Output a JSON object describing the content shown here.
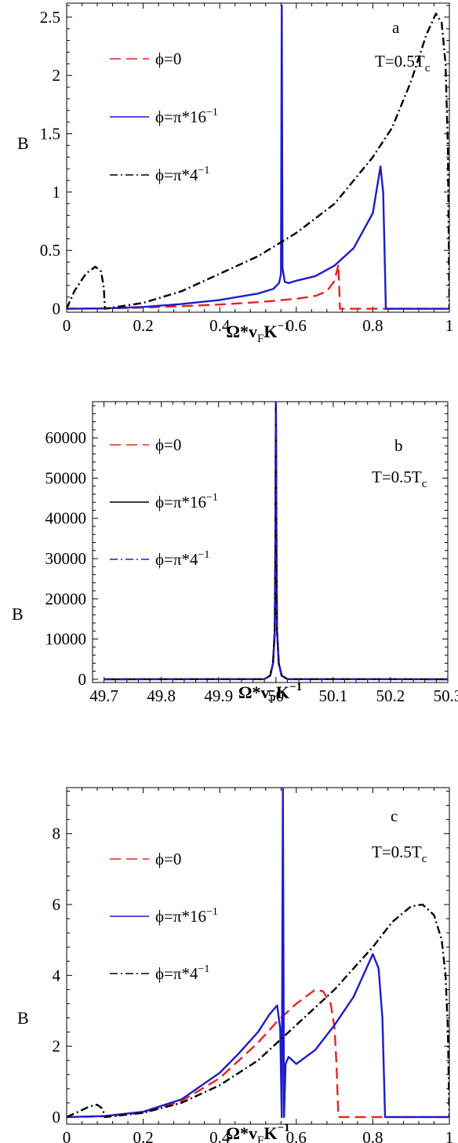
{
  "chart_data": [
    {
      "type": "line",
      "panel_label": "a",
      "annotation": "T=0.5T",
      "annotation_sub": "c",
      "xlabel": "Ω*v",
      "xlabel_sub": "F",
      "xlabel_tail": "K",
      "xlabel_sup": "−1",
      "ylabel": "B",
      "xlim": [
        0,
        1
      ],
      "ylim": [
        -0.03,
        2.62
      ],
      "x_ticks": [
        0,
        0.2,
        0.4,
        0.6,
        0.8,
        1
      ],
      "x_tick_labels": [
        "0",
        "0.2",
        "0.4",
        "0.6",
        "0.8",
        "1"
      ],
      "y_ticks": [
        0,
        0.5,
        1,
        1.5,
        2,
        2.5
      ],
      "y_tick_labels": [
        "0",
        "0.5",
        "1",
        "1.5",
        "2",
        "2.5"
      ],
      "legend_position": "upper-left",
      "series": [
        {
          "name": "ϕ=0",
          "color": "#e8241c",
          "dash": "dashed",
          "points": [
            [
              0,
              0
            ],
            [
              0.1,
              0.002
            ],
            [
              0.2,
              0.01
            ],
            [
              0.3,
              0.022
            ],
            [
              0.4,
              0.036
            ],
            [
              0.5,
              0.056
            ],
            [
              0.6,
              0.085
            ],
            [
              0.65,
              0.11
            ],
            [
              0.68,
              0.15
            ],
            [
              0.7,
              0.24
            ],
            [
              0.71,
              0.38
            ],
            [
              0.712,
              0.2
            ],
            [
              0.714,
              0
            ],
            [
              1,
              0
            ]
          ]
        },
        {
          "name": "ϕ=π*16",
          "name_sup": "−1",
          "color": "#1c1ccc",
          "dash": "solid",
          "points": [
            [
              0,
              0
            ],
            [
              0.1,
              0.003
            ],
            [
              0.2,
              0.015
            ],
            [
              0.3,
              0.04
            ],
            [
              0.4,
              0.075
            ],
            [
              0.5,
              0.13
            ],
            [
              0.54,
              0.17
            ],
            [
              0.555,
              0.22
            ],
            [
              0.56,
              0.3
            ],
            [
              0.562,
              2.6
            ],
            [
              0.564,
              0.35
            ],
            [
              0.57,
              0.23
            ],
            [
              0.58,
              0.22
            ],
            [
              0.6,
              0.24
            ],
            [
              0.65,
              0.28
            ],
            [
              0.7,
              0.37
            ],
            [
              0.75,
              0.52
            ],
            [
              0.8,
              0.82
            ],
            [
              0.82,
              1.22
            ],
            [
              0.827,
              1.0
            ],
            [
              0.832,
              0.3
            ],
            [
              0.834,
              0
            ],
            [
              1,
              0
            ]
          ]
        },
        {
          "name": "ϕ=π*4",
          "name_sup": "−1",
          "color": "#000000",
          "dash": "dashdot",
          "points": [
            [
              0,
              0
            ],
            [
              0.02,
              0.15
            ],
            [
              0.05,
              0.3
            ],
            [
              0.075,
              0.36
            ],
            [
              0.09,
              0.32
            ],
            [
              0.097,
              0.18
            ],
            [
              0.1,
              0
            ],
            [
              0.2,
              0.05
            ],
            [
              0.3,
              0.15
            ],
            [
              0.4,
              0.3
            ],
            [
              0.5,
              0.45
            ],
            [
              0.6,
              0.65
            ],
            [
              0.7,
              0.9
            ],
            [
              0.8,
              1.3
            ],
            [
              0.85,
              1.55
            ],
            [
              0.9,
              1.95
            ],
            [
              0.94,
              2.35
            ],
            [
              0.965,
              2.53
            ],
            [
              0.98,
              2.45
            ],
            [
              0.99,
              2.1
            ],
            [
              0.996,
              1.4
            ],
            [
              1,
              0
            ]
          ]
        }
      ]
    },
    {
      "type": "line",
      "panel_label": "b",
      "annotation": "T=0.5T",
      "annotation_sub": "c",
      "xlabel": "Ω*v",
      "xlabel_sub": "F",
      "xlabel_tail": "K",
      "xlabel_sup": "−1",
      "ylabel": "B",
      "xlim": [
        49.68,
        50.3
      ],
      "ylim": [
        -800,
        69000
      ],
      "x_ticks": [
        49.7,
        49.8,
        49.9,
        50,
        50.1,
        50.2,
        50.3
      ],
      "x_tick_labels": [
        "49.7",
        "49.8",
        "49.9",
        "50",
        "50.1",
        "50.2",
        "50.3"
      ],
      "y_ticks": [
        0,
        10000,
        20000,
        30000,
        40000,
        50000,
        60000
      ],
      "y_tick_labels": [
        "0",
        "10000",
        "20000",
        "30000",
        "40000",
        "50000",
        "60000"
      ],
      "legend_position": "upper-left",
      "series": [
        {
          "name": "ϕ=0",
          "color": "#e8241c",
          "dash": "dashed",
          "points": [
            [
              49.7,
              0
            ],
            [
              49.98,
              50
            ],
            [
              49.99,
              900
            ],
            [
              49.995,
              4000
            ],
            [
              49.998,
              12000
            ],
            [
              49.999,
              30000
            ],
            [
              50,
              69000
            ],
            [
              50.001,
              30000
            ],
            [
              50.002,
              12000
            ],
            [
              50.005,
              4000
            ],
            [
              50.01,
              900
            ],
            [
              50.02,
              50
            ],
            [
              50.3,
              0
            ]
          ]
        },
        {
          "name": "ϕ=π*16",
          "name_sup": "−1",
          "color": "#000000",
          "dash": "solid",
          "points": [
            [
              49.7,
              0
            ],
            [
              49.98,
              50
            ],
            [
              49.99,
              900
            ],
            [
              49.995,
              4000
            ],
            [
              49.998,
              12000
            ],
            [
              49.999,
              30000
            ],
            [
              50,
              69000
            ],
            [
              50.001,
              30000
            ],
            [
              50.002,
              12000
            ],
            [
              50.005,
              4000
            ],
            [
              50.01,
              900
            ],
            [
              50.02,
              50
            ],
            [
              50.3,
              0
            ]
          ]
        },
        {
          "name": "ϕ=π*4",
          "name_sup": "−1",
          "color": "#1c1ccc",
          "dash": "dashdot",
          "points": [
            [
              49.7,
              0
            ],
            [
              49.98,
              50
            ],
            [
              49.99,
              900
            ],
            [
              49.995,
              4000
            ],
            [
              49.998,
              12000
            ],
            [
              49.999,
              30000
            ],
            [
              50,
              69000
            ],
            [
              50.001,
              30000
            ],
            [
              50.002,
              12000
            ],
            [
              50.005,
              4000
            ],
            [
              50.01,
              900
            ],
            [
              50.02,
              50
            ],
            [
              50.3,
              0
            ]
          ]
        }
      ]
    },
    {
      "type": "line",
      "panel_label": "c",
      "annotation": "T=0.5T",
      "annotation_sub": "c",
      "xlabel": "Ω*v",
      "xlabel_sub": "F",
      "xlabel_tail": "K",
      "xlabel_sup": "−1",
      "ylabel": "B",
      "xlim": [
        0,
        1
      ],
      "ylim": [
        -0.2,
        9.3
      ],
      "x_ticks": [
        0,
        0.2,
        0.4,
        0.6,
        0.8,
        1
      ],
      "x_tick_labels": [
        "0",
        "0.2",
        "0.4",
        "0.6",
        "0.8",
        "1"
      ],
      "y_ticks": [
        0,
        2,
        4,
        6,
        8
      ],
      "y_tick_labels": [
        "0",
        "2",
        "4",
        "6",
        "8"
      ],
      "legend_position": "upper-left",
      "series": [
        {
          "name": "ϕ=0",
          "color": "#e8241c",
          "dash": "dashed",
          "points": [
            [
              0,
              0
            ],
            [
              0.1,
              0.02
            ],
            [
              0.2,
              0.12
            ],
            [
              0.3,
              0.45
            ],
            [
              0.4,
              1.1
            ],
            [
              0.5,
              2.1
            ],
            [
              0.55,
              2.7
            ],
            [
              0.6,
              3.2
            ],
            [
              0.65,
              3.6
            ],
            [
              0.67,
              3.55
            ],
            [
              0.69,
              3.2
            ],
            [
              0.7,
              2.5
            ],
            [
              0.705,
              1.5
            ],
            [
              0.71,
              0
            ],
            [
              1,
              0
            ]
          ]
        },
        {
          "name": "ϕ=π*16",
          "name_sup": "−1",
          "color": "#1c1ccc",
          "dash": "solid",
          "points": [
            [
              0,
              0
            ],
            [
              0.1,
              0.03
            ],
            [
              0.2,
              0.15
            ],
            [
              0.3,
              0.5
            ],
            [
              0.4,
              1.25
            ],
            [
              0.45,
              1.8
            ],
            [
              0.5,
              2.4
            ],
            [
              0.53,
              2.9
            ],
            [
              0.55,
              3.15
            ],
            [
              0.558,
              2.5
            ],
            [
              0.562,
              0
            ],
            [
              0.565,
              9.3
            ],
            [
              0.568,
              0
            ],
            [
              0.572,
              1.5
            ],
            [
              0.58,
              1.7
            ],
            [
              0.6,
              1.5
            ],
            [
              0.65,
              1.9
            ],
            [
              0.7,
              2.6
            ],
            [
              0.75,
              3.4
            ],
            [
              0.8,
              4.6
            ],
            [
              0.815,
              4.2
            ],
            [
              0.825,
              2.8
            ],
            [
              0.832,
              0
            ],
            [
              1,
              0
            ]
          ]
        },
        {
          "name": "ϕ=π*4",
          "name_sup": "−1",
          "color": "#000000",
          "dash": "dashdot",
          "points": [
            [
              0,
              0
            ],
            [
              0.03,
              0.15
            ],
            [
              0.06,
              0.3
            ],
            [
              0.08,
              0.35
            ],
            [
              0.092,
              0.25
            ],
            [
              0.098,
              0.1
            ],
            [
              0.1,
              0
            ],
            [
              0.2,
              0.12
            ],
            [
              0.3,
              0.4
            ],
            [
              0.4,
              0.9
            ],
            [
              0.5,
              1.6
            ],
            [
              0.6,
              2.6
            ],
            [
              0.7,
              3.6
            ],
            [
              0.8,
              4.8
            ],
            [
              0.85,
              5.5
            ],
            [
              0.9,
              5.95
            ],
            [
              0.93,
              6.0
            ],
            [
              0.96,
              5.7
            ],
            [
              0.98,
              5.0
            ],
            [
              0.99,
              4.0
            ],
            [
              0.996,
              2.5
            ],
            [
              1,
              0
            ]
          ]
        }
      ]
    }
  ]
}
